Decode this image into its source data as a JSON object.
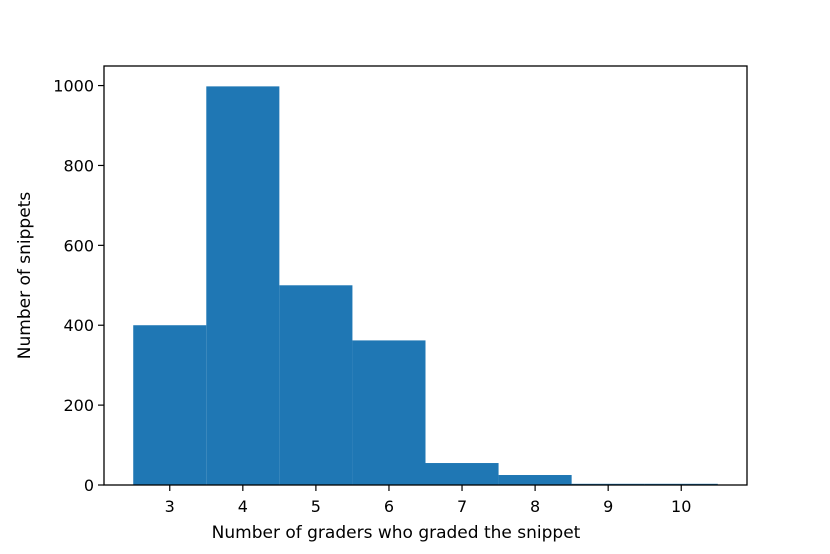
{
  "chart_data": {
    "type": "bar",
    "title": "",
    "xlabel": "Number of graders who graded the snippet",
    "ylabel": "Number of snippets",
    "bins": [
      {
        "x": 3,
        "value": 400
      },
      {
        "x": 4,
        "value": 998
      },
      {
        "x": 5,
        "value": 500
      },
      {
        "x": 6,
        "value": 362
      },
      {
        "x": 7,
        "value": 55
      },
      {
        "x": 8,
        "value": 25
      },
      {
        "x": 9,
        "value": 3
      },
      {
        "x": 10,
        "value": 3
      }
    ],
    "xlim": [
      2.1,
      10.9
    ],
    "ylim": [
      0,
      1049
    ],
    "xticks": [
      3,
      4,
      5,
      6,
      7,
      8,
      9,
      10
    ],
    "yticks": [
      0,
      200,
      400,
      600,
      800,
      1000
    ],
    "bar_color": "#1f77b4",
    "grid": false,
    "legend": "none"
  }
}
